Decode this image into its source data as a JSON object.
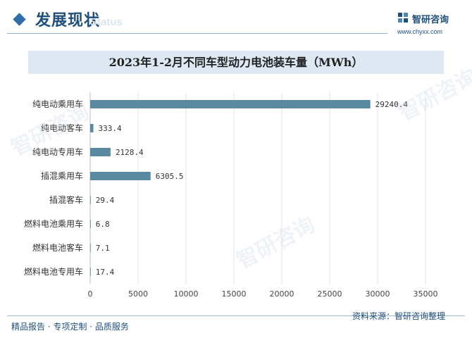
{
  "header": {
    "title": "发展现状",
    "title_ghost": "Status",
    "brand_name": "智研咨询",
    "brand_url": "www.chyxx.com"
  },
  "footer": {
    "tagline": "精品报告 · 专项定制 · 品质服务",
    "source": "资料来源：智研咨询整理"
  },
  "watermark": {
    "text": "智研咨询"
  },
  "colors": {
    "accent": "#1f4f7d",
    "bar": "#5a8aa0",
    "title_band": "#dde8f2",
    "grid": "#e3e3e3"
  },
  "chart_data": {
    "type": "bar",
    "orientation": "horizontal",
    "title": "2023年1-2月不同车型动力电池装车量（MWh）",
    "categories": [
      "纯电动乘用车",
      "纯电动客车",
      "纯电动专用车",
      "插混乘用车",
      "插混客车",
      "燃料电池乘用车",
      "燃料电池客车",
      "燃料电池专用车"
    ],
    "values": [
      29240.4,
      333.4,
      2128.4,
      6305.5,
      29.4,
      6.8,
      7.1,
      17.4
    ],
    "value_labels": [
      "29240.4",
      "333.4",
      "2128.4",
      "6305.5",
      "29.4",
      "6.8",
      "7.1",
      "17.4"
    ],
    "xlim": [
      0,
      35000
    ],
    "xticks": [
      "0",
      "5000",
      "10000",
      "15000",
      "20000",
      "25000",
      "30000",
      "35000"
    ],
    "grid": true,
    "legend": "none"
  }
}
